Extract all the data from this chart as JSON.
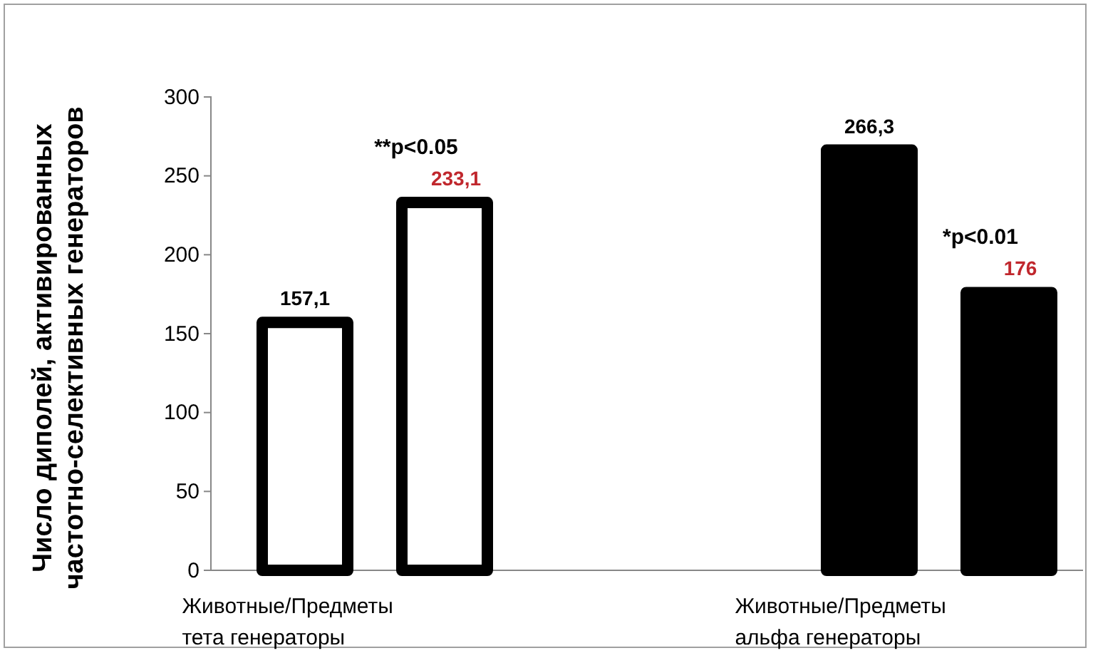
{
  "chart_data": {
    "type": "bar",
    "ylabel": "Число диполей, активированных\nчастотно-селективных генераторов",
    "categories": [
      "Животные/Предметы\nтета генераторы",
      "Животные/Предметы\nальфа генераторы"
    ],
    "series": [
      {
        "colors": [
          "#ffffff",
          "#000000"
        ],
        "values": [
          157.1,
          266.3
        ],
        "value_labels": [
          "157,1",
          "266,3"
        ]
      },
      {
        "colors": [
          "#ffffff",
          "#000000"
        ],
        "values": [
          233.1,
          176
        ],
        "value_labels": [
          "233,1",
          "176"
        ]
      }
    ],
    "ylim": [
      0,
      300
    ],
    "yticks": [
      0,
      50,
      100,
      150,
      200,
      250,
      300
    ],
    "grid": false,
    "annotations": [
      "**p<0.05",
      "*p<0.01"
    ]
  }
}
